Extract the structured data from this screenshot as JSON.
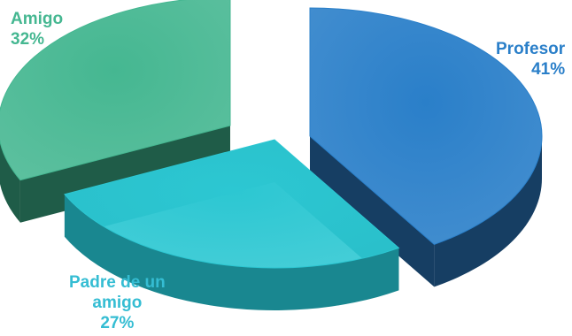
{
  "chart_data": {
    "type": "pie",
    "title": "",
    "slices": [
      {
        "label": "Profesor",
        "value": 41,
        "value_label": "41%",
        "color": "#2A7FC9",
        "side_color": "#163E63",
        "label_color": "#2A7FC9"
      },
      {
        "label": "Padre de un amigo",
        "label_lines": [
          "Padre de un",
          "amigo"
        ],
        "value": 27,
        "value_label": "27%",
        "color": "#2CC7D2",
        "side_color": "#198790",
        "label_color": "#35BDD3"
      },
      {
        "label": "Amigo",
        "value": 32,
        "value_label": "32%",
        "color": "#45B791",
        "side_color": "#1F5C48",
        "label_color": "#45B791"
      }
    ],
    "style": "3d-exploded",
    "legend": "none"
  }
}
